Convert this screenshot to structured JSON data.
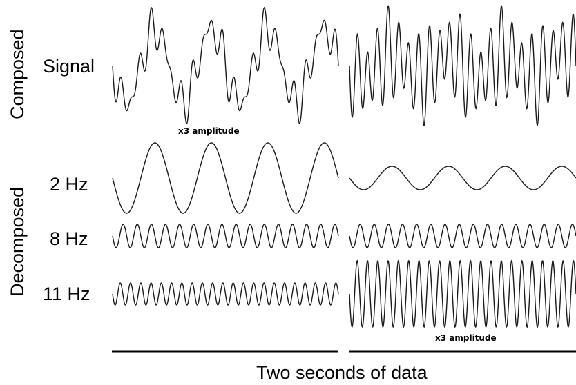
{
  "labels": {
    "composed": "Composed",
    "decomposed": "Decomposed",
    "signal": "Signal",
    "hz2": "2 Hz",
    "hz8": "8 Hz",
    "hz11": "11 Hz",
    "amp_note_left": "x3 amplitude",
    "amp_note_right": "x3 amplitude",
    "caption": "Two seconds of data"
  },
  "components": {
    "left": [
      {
        "name": "2 Hz",
        "frequency_hz": 2,
        "relative_amplitude": 3
      },
      {
        "name": "8 Hz",
        "frequency_hz": 8,
        "relative_amplitude": 1
      },
      {
        "name": "11 Hz",
        "frequency_hz": 11,
        "relative_amplitude": 1
      }
    ],
    "right": [
      {
        "name": "2 Hz",
        "frequency_hz": 2,
        "relative_amplitude": 1
      },
      {
        "name": "8 Hz",
        "frequency_hz": 8,
        "relative_amplitude": 1
      },
      {
        "name": "11 Hz",
        "frequency_hz": 11,
        "relative_amplitude": 3
      }
    ]
  },
  "colors": {
    "line": "#1a1a1a",
    "bar": "#000000"
  }
}
